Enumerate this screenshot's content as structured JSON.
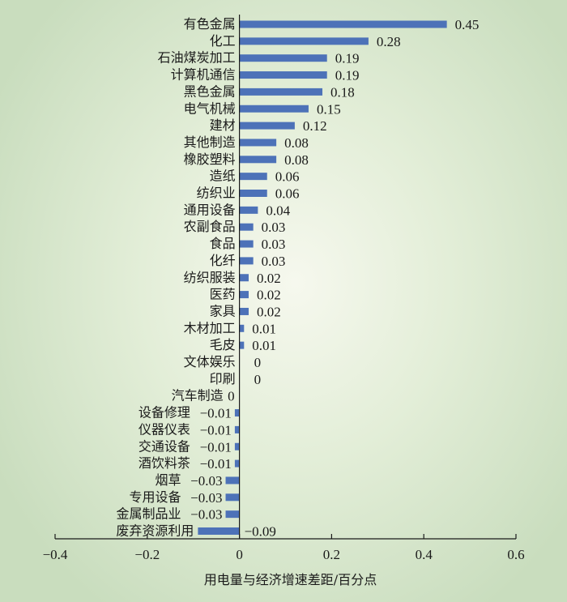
{
  "chart_data": {
    "type": "bar",
    "orientation": "horizontal",
    "categories": [
      "有色金属",
      "化工",
      "石油煤炭加工",
      "计算机通信",
      "黑色金属",
      "电气机械",
      "建材",
      "其他制造",
      "橡胶塑料",
      "造纸",
      "纺织业",
      "通用设备",
      "农副食品",
      "食品",
      "化纤",
      "纺织服装",
      "医药",
      "家具",
      "木材加工",
      "毛皮",
      "文体娱乐",
      "印刷",
      "汽车制造",
      "设备修理",
      "仪器仪表",
      "交通设备",
      "酒饮料茶",
      "烟草",
      "专用设备",
      "金属制品业",
      "废弃资源利用"
    ],
    "values": [
      0.45,
      0.28,
      0.19,
      0.19,
      0.18,
      0.15,
      0.12,
      0.08,
      0.08,
      0.06,
      0.06,
      0.04,
      0.03,
      0.03,
      0.03,
      0.02,
      0.02,
      0.02,
      0.01,
      0.01,
      0,
      0,
      0,
      -0.01,
      -0.01,
      -0.01,
      -0.01,
      -0.03,
      -0.03,
      -0.03,
      -0.09
    ],
    "value_labels": [
      "0.45",
      "0.28",
      "0.19",
      "0.19",
      "0.18",
      "0.15",
      "0.12",
      "0.08",
      "0.08",
      "0.06",
      "0.06",
      "0.04",
      "0.03",
      "0.03",
      "0.03",
      "0.02",
      "0.02",
      "0.02",
      "0.01",
      "0.01",
      "0",
      "0",
      "0",
      "−0.01",
      "−0.01",
      "−0.01",
      "−0.01",
      "−0.03",
      "−0.03",
      "−0.03",
      "−0.09"
    ],
    "xlabel": "用电量与经济增速差距/百分点",
    "xlim": [
      -0.4,
      0.6
    ],
    "xticks": [
      -0.4,
      -0.2,
      0,
      0.2,
      0.4,
      0.6
    ],
    "xtick_labels": [
      "−0.4",
      "−0.2",
      "0",
      "0.2",
      "0.4",
      "0.6"
    ],
    "bar_color": "#4d72b8",
    "grid": false
  }
}
